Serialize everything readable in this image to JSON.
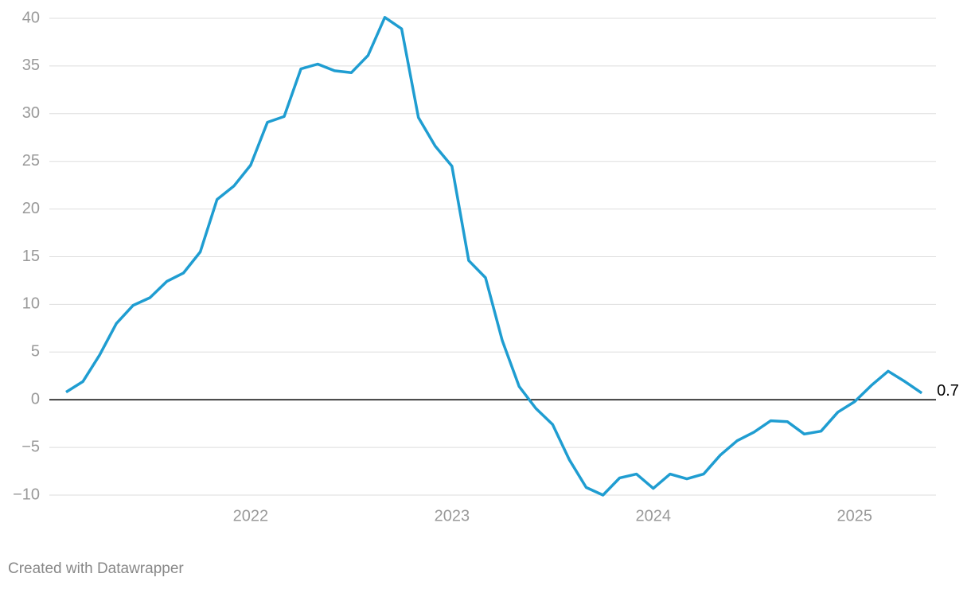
{
  "chart_data": {
    "type": "line",
    "categories": [
      null,
      null,
      null,
      null,
      null,
      null,
      null,
      null,
      null,
      null,
      null,
      "2022",
      null,
      null,
      null,
      null,
      null,
      null,
      null,
      null,
      null,
      null,
      null,
      "2023",
      null,
      null,
      null,
      null,
      null,
      null,
      null,
      null,
      null,
      null,
      null,
      "2024",
      null,
      null,
      null,
      null,
      null,
      null,
      null,
      null,
      null,
      null,
      null,
      "2025",
      null,
      null,
      null,
      null
    ],
    "series": [
      {
        "color": "#1f9dd1",
        "values": [
          0.8,
          1.9,
          4.7,
          8.0,
          9.9,
          10.7,
          12.4,
          13.3,
          15.5,
          21.0,
          22.4,
          24.6,
          29.1,
          29.7,
          34.7,
          35.2,
          34.5,
          34.3,
          36.1,
          40.1,
          38.9,
          29.6,
          26.6,
          24.5,
          14.6,
          12.8,
          6.2,
          1.4,
          -0.9,
          -2.6,
          -6.3,
          -9.2,
          -10.0,
          -8.2,
          -7.8,
          -9.3,
          -7.8,
          -8.3,
          -7.8,
          -5.8,
          -4.3,
          -3.4,
          -2.2,
          -2.3,
          -3.6,
          -3.3,
          -1.3,
          -0.2,
          1.5,
          3.0,
          1.9,
          0.7
        ]
      }
    ],
    "ylim": [
      -10,
      40
    ],
    "yticks": [
      {
        "value": -10,
        "label": "−10"
      },
      {
        "value": -5,
        "label": "−5"
      },
      0,
      5,
      10,
      15,
      20,
      25,
      30,
      35,
      40
    ],
    "grid": true,
    "credit": "Created with Datawrapper"
  }
}
